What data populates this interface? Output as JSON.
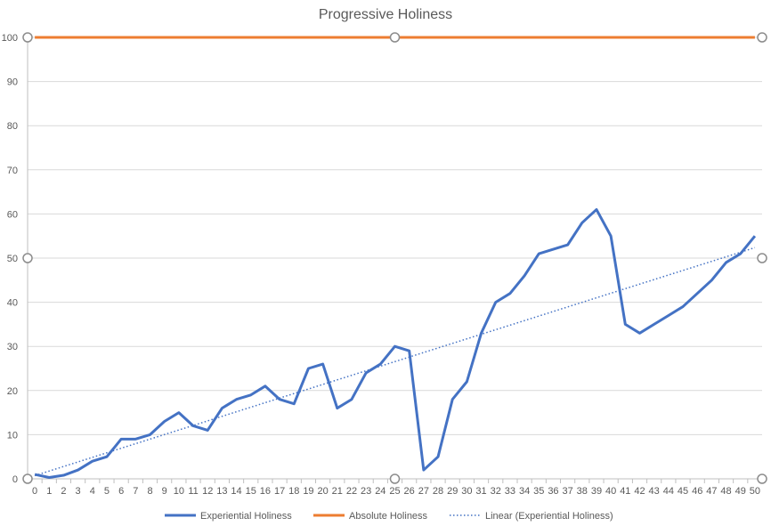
{
  "chart_data": {
    "type": "line",
    "title": "Progressive Holiness",
    "xlabel": "",
    "ylabel": "",
    "ylim": [
      0,
      100
    ],
    "yticks": [
      0,
      10,
      20,
      30,
      40,
      50,
      60,
      70,
      80,
      90,
      100
    ],
    "grid": true,
    "legend_position": "bottom",
    "x": [
      0,
      1,
      2,
      3,
      4,
      5,
      6,
      7,
      8,
      9,
      10,
      11,
      12,
      13,
      14,
      15,
      16,
      17,
      18,
      19,
      20,
      21,
      22,
      23,
      24,
      25,
      26,
      27,
      28,
      29,
      30,
      31,
      32,
      33,
      34,
      35,
      36,
      37,
      38,
      39,
      40,
      41,
      42,
      43,
      44,
      45,
      46,
      47,
      48,
      49,
      50
    ],
    "series": [
      {
        "name": "Experiential Holiness",
        "color": "#4472C4",
        "style": "solid",
        "values": [
          1,
          0.3,
          0.8,
          2,
          4,
          5,
          9,
          9,
          10,
          13,
          15,
          12,
          11,
          16,
          18,
          19,
          21,
          18,
          17,
          25,
          26,
          16,
          18,
          24,
          26,
          30,
          29,
          2,
          5,
          18,
          22,
          33,
          40,
          42,
          46,
          51,
          52,
          53,
          58,
          61,
          55,
          35,
          33,
          35,
          37,
          39,
          42,
          45,
          49,
          51,
          55
        ]
      },
      {
        "name": "Absolute Holiness",
        "color": "#ED7D31",
        "style": "solid",
        "values": [
          100,
          100,
          100,
          100,
          100,
          100,
          100,
          100,
          100,
          100,
          100,
          100,
          100,
          100,
          100,
          100,
          100,
          100,
          100,
          100,
          100,
          100,
          100,
          100,
          100,
          100,
          100,
          100,
          100,
          100,
          100,
          100,
          100,
          100,
          100,
          100,
          100,
          100,
          100,
          100,
          100,
          100,
          100,
          100,
          100,
          100,
          100,
          100,
          100,
          100,
          100
        ]
      },
      {
        "name": "Linear (Experiential Holiness)",
        "color": "#4472C4",
        "style": "dotted",
        "trendline_of": "Experiential Holiness"
      }
    ]
  }
}
